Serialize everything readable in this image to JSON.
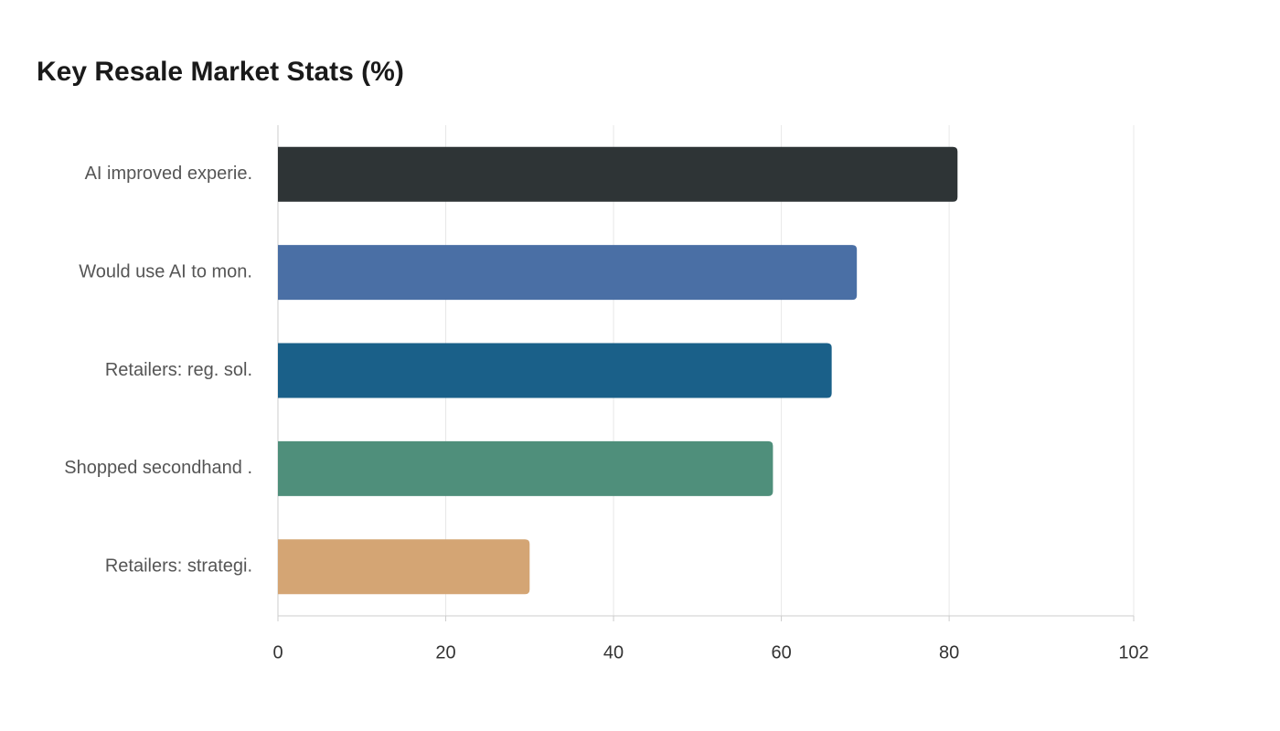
{
  "chart_data": {
    "type": "bar",
    "orientation": "horizontal",
    "title": "Key Resale Market Stats (%)",
    "categories": [
      "AI improved experie.",
      "Would use AI to mon.",
      "Retailers: reg. sol.",
      "Shopped secondhand .",
      "Retailers: strategi."
    ],
    "values": [
      81,
      69,
      66,
      59,
      30
    ],
    "colors": [
      "#2e3436",
      "#4a6fa5",
      "#1a6089",
      "#4f8f7b",
      "#d4a574"
    ],
    "xlim": [
      0,
      102
    ],
    "xticks": [
      0,
      20,
      40,
      60,
      80,
      102
    ],
    "grid": true
  }
}
